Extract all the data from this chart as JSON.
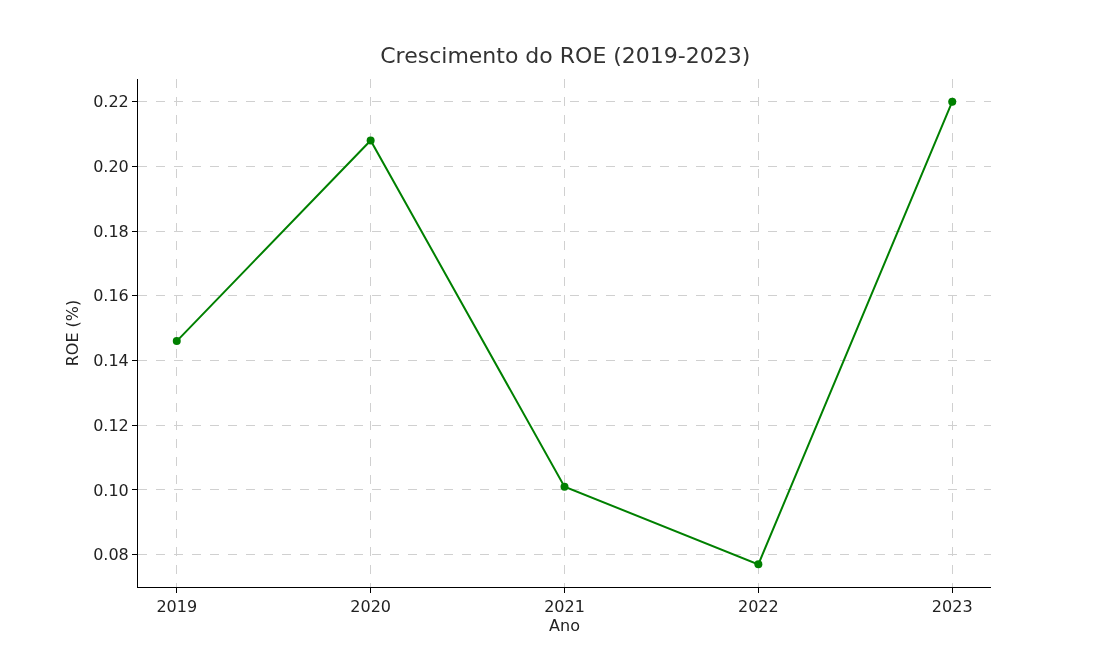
{
  "chart_data": {
    "type": "line",
    "title": "Crescimento do ROE (2019-2023)",
    "xlabel": "Ano",
    "ylabel": "ROE (%)",
    "x": [
      2019,
      2020,
      2021,
      2022,
      2023
    ],
    "series": [
      {
        "color": "#008000",
        "values": [
          0.146,
          0.208,
          0.101,
          0.077,
          0.22
        ]
      }
    ],
    "xlim": [
      2018.8,
      2023.2
    ],
    "xticks": [
      2019,
      2020,
      2021,
      2022,
      2023
    ],
    "ylim": [
      0.07,
      0.227
    ],
    "yticks": [
      {
        "value": 0.08,
        "label": "0.08"
      },
      {
        "value": 0.1,
        "label": "0.10"
      },
      {
        "value": 0.12,
        "label": "0.12"
      },
      {
        "value": 0.14,
        "label": "0.14"
      },
      {
        "value": 0.16,
        "label": "0.16"
      },
      {
        "value": 0.18,
        "label": "0.18"
      },
      {
        "value": 0.2,
        "label": "0.20"
      },
      {
        "value": 0.22,
        "label": "0.22"
      }
    ],
    "grid": true,
    "marker": "circle",
    "line_style": "solid",
    "legend": false
  }
}
